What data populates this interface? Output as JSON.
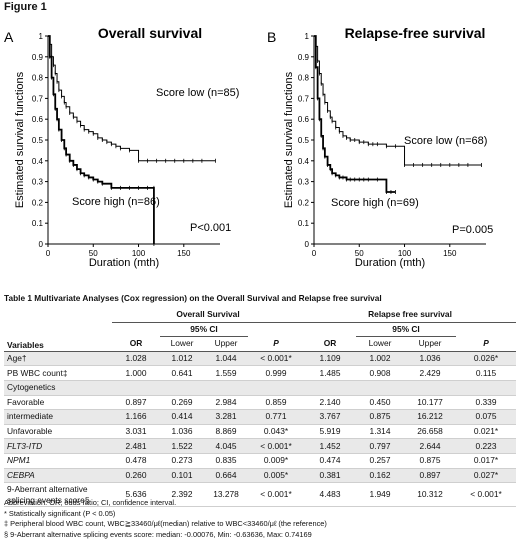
{
  "figure_label": "Figure 1",
  "panels": [
    {
      "letter": "A",
      "title": "Overall survival",
      "y_axis_label": "Estimated survival functions",
      "x_axis_label": "Duration (mth)",
      "x_ticks": [
        "0",
        "50",
        "100",
        "150"
      ],
      "y_ticks": [
        "0",
        "0.1",
        "0.2",
        "0.3",
        "0.4",
        "0.5",
        "0.6",
        "0.7",
        "0.8",
        "0.9",
        "1"
      ],
      "curve_labels": [
        "Score low (n=85)",
        "Score high (n=86)"
      ],
      "pvalue": "P<0.001"
    },
    {
      "letter": "B",
      "title": "Relapse-free survival",
      "y_axis_label": "Estimated survival functions",
      "x_axis_label": "Duration (mth)",
      "x_ticks": [
        "0",
        "50",
        "100",
        "150"
      ],
      "y_ticks": [
        "0",
        "0.1",
        "0.2",
        "0.3",
        "0.4",
        "0.5",
        "0.6",
        "0.7",
        "0.8",
        "0.9",
        "1"
      ],
      "curve_labels": [
        "Score low (n=68)",
        "Score high (n=69)"
      ],
      "pvalue": "P=0.005"
    }
  ],
  "chart_data": [
    {
      "type": "line",
      "title": "Overall survival",
      "xlabel": "Duration (mth)",
      "ylabel": "Estimated survival functions",
      "xlim": [
        0,
        190
      ],
      "ylim": [
        0,
        1
      ],
      "series": [
        {
          "name": "Score low (n=85)",
          "x": [
            0,
            2,
            4,
            6,
            8,
            10,
            12,
            15,
            18,
            20,
            24,
            28,
            32,
            36,
            40,
            45,
            50,
            55,
            60,
            65,
            70,
            75,
            80,
            90,
            100,
            110,
            120,
            130,
            140,
            150,
            160,
            170,
            185
          ],
          "y": [
            1.0,
            0.96,
            0.9,
            0.86,
            0.82,
            0.78,
            0.74,
            0.71,
            0.68,
            0.66,
            0.63,
            0.61,
            0.59,
            0.57,
            0.55,
            0.54,
            0.53,
            0.51,
            0.5,
            0.49,
            0.48,
            0.47,
            0.46,
            0.45,
            0.4,
            0.4,
            0.4,
            0.4,
            0.4,
            0.4,
            0.4,
            0.4,
            0.4
          ]
        },
        {
          "name": "Score high (n=86)",
          "x": [
            0,
            2,
            4,
            6,
            8,
            10,
            12,
            15,
            18,
            20,
            24,
            28,
            32,
            36,
            40,
            45,
            50,
            55,
            60,
            70,
            80,
            90,
            100,
            110,
            117,
            117
          ],
          "y": [
            1.0,
            0.9,
            0.8,
            0.72,
            0.65,
            0.6,
            0.55,
            0.5,
            0.46,
            0.43,
            0.4,
            0.38,
            0.36,
            0.34,
            0.33,
            0.32,
            0.31,
            0.3,
            0.29,
            0.27,
            0.27,
            0.27,
            0.27,
            0.27,
            0.27,
            0.0
          ]
        }
      ]
    },
    {
      "type": "line",
      "title": "Relapse-free survival",
      "xlabel": "Duration (mth)",
      "ylabel": "Estimated survival functions",
      "xlim": [
        0,
        190
      ],
      "ylim": [
        0,
        1
      ],
      "series": [
        {
          "name": "Score low (n=68)",
          "x": [
            0,
            2,
            4,
            6,
            8,
            10,
            12,
            15,
            18,
            20,
            24,
            28,
            32,
            36,
            40,
            45,
            50,
            55,
            60,
            65,
            70,
            80,
            90,
            100,
            110,
            120,
            130,
            140,
            150,
            160,
            170,
            185
          ],
          "y": [
            1.0,
            0.95,
            0.88,
            0.82,
            0.77,
            0.72,
            0.68,
            0.64,
            0.61,
            0.59,
            0.56,
            0.54,
            0.52,
            0.51,
            0.5,
            0.5,
            0.49,
            0.49,
            0.48,
            0.48,
            0.48,
            0.47,
            0.47,
            0.38,
            0.38,
            0.38,
            0.38,
            0.38,
            0.38,
            0.38,
            0.38,
            0.38
          ]
        },
        {
          "name": "Score high (n=69)",
          "x": [
            0,
            2,
            4,
            6,
            8,
            10,
            12,
            15,
            18,
            20,
            24,
            28,
            32,
            36,
            40,
            45,
            50,
            55,
            60,
            70,
            80,
            85,
            90
          ],
          "y": [
            1.0,
            0.85,
            0.7,
            0.6,
            0.52,
            0.46,
            0.42,
            0.38,
            0.36,
            0.34,
            0.33,
            0.32,
            0.32,
            0.31,
            0.31,
            0.31,
            0.31,
            0.31,
            0.31,
            0.31,
            0.25,
            0.25,
            0.25
          ]
        }
      ]
    }
  ],
  "table": {
    "caption": "Table 1 Multivariate Analyses (Cox regression) on the Overall Survival and Relapse free survival",
    "group_headers": [
      "Overall Survival",
      "Relapse free survival"
    ],
    "ci_header": "95% CI",
    "variables_header": "Variables",
    "sub_headers": [
      "OR",
      "Lower",
      "Upper",
      "P",
      "OR",
      "Lower",
      "Upper",
      "P"
    ],
    "rows": [
      {
        "label": "Age†",
        "values": [
          "1.028",
          "1.012",
          "1.044",
          "< 0.001*",
          "1.109",
          "1.002",
          "1.036",
          "0.026*"
        ]
      },
      {
        "label": "PB WBC count‡",
        "values": [
          "1.000",
          "0.641",
          "1.559",
          "0.999",
          "1.485",
          "0.908",
          "2.429",
          "0.115"
        ]
      },
      {
        "label": "Cytogenetics",
        "values": [
          "",
          "",
          "",
          "",
          "",
          "",
          "",
          ""
        ]
      },
      {
        "label": "Favorable",
        "values": [
          "0.897",
          "0.269",
          "2.984",
          "0.859",
          "2.140",
          "0.450",
          "10.177",
          "0.339"
        ]
      },
      {
        "label": "intermediate",
        "values": [
          "1.166",
          "0.414",
          "3.281",
          "0.771",
          "3.767",
          "0.875",
          "16.212",
          "0.075"
        ]
      },
      {
        "label": "Unfavorable",
        "values": [
          "3.031",
          "1.036",
          "8.869",
          "0.043*",
          "5.919",
          "1.314",
          "26.658",
          "0.021*"
        ]
      },
      {
        "label": "FLT3-ITD",
        "values": [
          "2.481",
          "1.522",
          "4.045",
          "< 0.001*",
          "1.452",
          "0.797",
          "2.644",
          "0.223"
        ]
      },
      {
        "label": "NPM1",
        "values": [
          "0.478",
          "0.273",
          "0.835",
          "0.009*",
          "0.474",
          "0.257",
          "0.875",
          "0.017*"
        ]
      },
      {
        "label": "CEBPA",
        "values": [
          "0.260",
          "0.101",
          "0.664",
          "0.005*",
          "0.381",
          "0.162",
          "0.897",
          "0.027*"
        ]
      },
      {
        "label": "9-Aberrant alternative",
        "label2": "splicing events score§",
        "values": [
          "5.636",
          "2.392",
          "13.278",
          "< 0.001*",
          "4.483",
          "1.949",
          "10.312",
          "< 0.001*"
        ]
      }
    ],
    "notes": [
      "Abbreviation: OR, odds ratio; CI, confidence interval.",
      "* Statistically significant (P < 0.05)",
      "‡ Peripheral blood WBC count, WBC≧33460/μℓ(median) relative to WBC<33460/μℓ (the reference)",
      "§ 9-Aberrant alternative splicing events score: median: -0.00076, Min: -0.63636, Max: 0.74169"
    ]
  }
}
